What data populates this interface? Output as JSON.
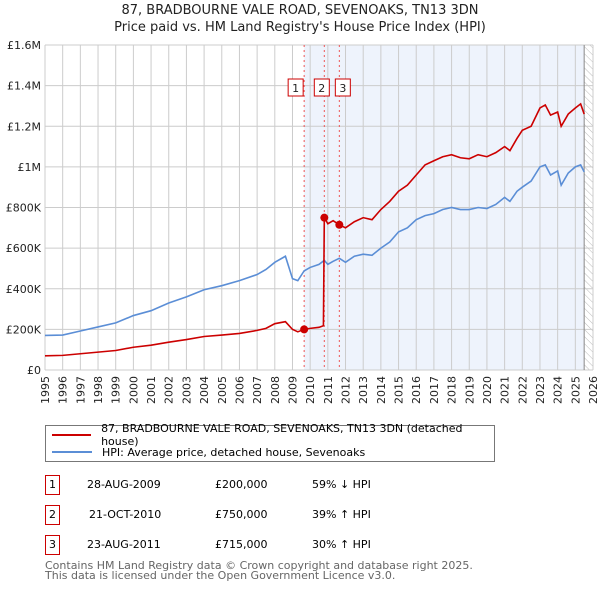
{
  "title": "87, BRADBOURNE VALE ROAD, SEVENOAKS, TN13 3DN",
  "subtitle": "Price paid vs. HM Land Registry's House Price Index (HPI)",
  "chart_data": {
    "type": "line",
    "xlim": [
      1995,
      2026
    ],
    "ylim": [
      0,
      1600000
    ],
    "y_ticks": [
      {
        "v": 0,
        "label": "£0"
      },
      {
        "v": 200000,
        "label": "£200K"
      },
      {
        "v": 400000,
        "label": "£400K"
      },
      {
        "v": 600000,
        "label": "£600K"
      },
      {
        "v": 800000,
        "label": "£800K"
      },
      {
        "v": 1000000,
        "label": "£1M"
      },
      {
        "v": 1200000,
        "label": "£1.2M"
      },
      {
        "v": 1400000,
        "label": "£1.4M"
      },
      {
        "v": 1600000,
        "label": "£1.6M"
      }
    ],
    "x_ticks": [
      "1995",
      "1996",
      "1997",
      "1998",
      "1999",
      "2000",
      "2001",
      "2002",
      "2003",
      "2004",
      "2005",
      "2006",
      "2007",
      "2008",
      "2009",
      "2010",
      "2011",
      "2012",
      "2013",
      "2014",
      "2015",
      "2016",
      "2017",
      "2018",
      "2019",
      "2020",
      "2021",
      "2022",
      "2023",
      "2024",
      "2025",
      "2026"
    ],
    "shaded_from": 2009.66,
    "data_end": 2025.5,
    "series": [
      {
        "name": "87, BRADBOURNE VALE ROAD, SEVENOAKS, TN13 3DN (detached house)",
        "color": "#cc0000",
        "x": [
          1995,
          1996,
          1997,
          1998,
          1999,
          2000,
          2001,
          2002,
          2003,
          2004,
          2005,
          2006,
          2007,
          2007.5,
          2008,
          2008.6,
          2009,
          2009.3,
          2009.66,
          2010,
          2010.5,
          2010.75,
          2010.8,
          2011,
          2011.3,
          2011.65,
          2012,
          2012.5,
          2013,
          2013.5,
          2014,
          2014.5,
          2015,
          2015.5,
          2016,
          2016.5,
          2017,
          2017.5,
          2018,
          2018.5,
          2019,
          2019.5,
          2020,
          2020.5,
          2021,
          2021.3,
          2021.7,
          2022,
          2022.5,
          2023,
          2023.3,
          2023.6,
          2024,
          2024.2,
          2024.6,
          2025,
          2025.3,
          2025.5
        ],
        "y": [
          70000,
          72000,
          80000,
          88000,
          96000,
          112000,
          122000,
          137000,
          150000,
          165000,
          172000,
          180000,
          195000,
          205000,
          228000,
          238000,
          200000,
          188000,
          200000,
          205000,
          210000,
          218000,
          750000,
          720000,
          735000,
          715000,
          700000,
          730000,
          750000,
          740000,
          790000,
          830000,
          880000,
          910000,
          960000,
          1010000,
          1030000,
          1050000,
          1060000,
          1045000,
          1040000,
          1060000,
          1050000,
          1070000,
          1100000,
          1080000,
          1140000,
          1180000,
          1200000,
          1290000,
          1305000,
          1255000,
          1270000,
          1200000,
          1260000,
          1290000,
          1310000,
          1260000
        ]
      },
      {
        "name": "HPI: Average price, detached house, Sevenoaks",
        "color": "#5b8ed6",
        "x": [
          1995,
          1996,
          1997,
          1998,
          1999,
          2000,
          2001,
          2002,
          2003,
          2004,
          2005,
          2006,
          2007,
          2007.5,
          2008,
          2008.6,
          2009,
          2009.3,
          2009.66,
          2010,
          2010.5,
          2010.8,
          2011,
          2011.3,
          2011.65,
          2012,
          2012.5,
          2013,
          2013.5,
          2014,
          2014.5,
          2015,
          2015.5,
          2016,
          2016.5,
          2017,
          2017.5,
          2018,
          2018.5,
          2019,
          2019.5,
          2020,
          2020.5,
          2021,
          2021.3,
          2021.7,
          2022,
          2022.5,
          2023,
          2023.3,
          2023.6,
          2024,
          2024.2,
          2024.6,
          2025,
          2025.3,
          2025.5
        ],
        "y": [
          170000,
          172000,
          192000,
          212000,
          232000,
          268000,
          292000,
          330000,
          360000,
          395000,
          415000,
          440000,
          470000,
          495000,
          530000,
          560000,
          450000,
          440000,
          488000,
          505000,
          520000,
          540000,
          520000,
          535000,
          550000,
          530000,
          560000,
          570000,
          565000,
          600000,
          630000,
          680000,
          700000,
          740000,
          760000,
          770000,
          790000,
          800000,
          790000,
          790000,
          800000,
          795000,
          815000,
          850000,
          830000,
          880000,
          900000,
          930000,
          1000000,
          1010000,
          960000,
          980000,
          910000,
          970000,
          1000000,
          1010000,
          975000
        ]
      }
    ],
    "markers": [
      {
        "id": "1",
        "x": 2009.66,
        "y": 200000
      },
      {
        "id": "2",
        "x": 2010.8,
        "y": 750000
      },
      {
        "id": "3",
        "x": 2011.65,
        "y": 715000
      }
    ]
  },
  "legend": [
    "87, BRADBOURNE VALE ROAD, SEVENOAKS, TN13 3DN (detached house)",
    "HPI: Average price, detached house, Sevenoaks"
  ],
  "transactions": [
    {
      "id": "1",
      "date": "28-AUG-2009",
      "price": "£200,000",
      "hpi": "59% ↓ HPI"
    },
    {
      "id": "2",
      "date": "21-OCT-2010",
      "price": "£750,000",
      "hpi": "39% ↑ HPI"
    },
    {
      "id": "3",
      "date": "23-AUG-2011",
      "price": "£715,000",
      "hpi": "30% ↑ HPI"
    }
  ],
  "footer": [
    "Contains HM Land Registry data © Crown copyright and database right 2025.",
    "This data is licensed under the Open Government Licence v3.0."
  ]
}
